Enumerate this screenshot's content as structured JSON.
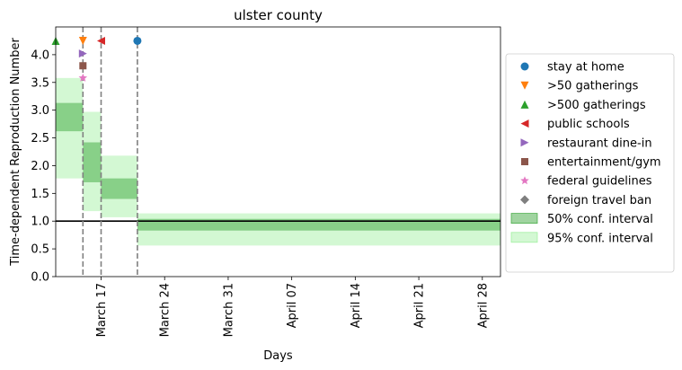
{
  "chart_data": {
    "type": "step-band",
    "title": "ulster county",
    "xlabel": "Days",
    "ylabel": "Time-dependent Reproduction Number",
    "x_unit": "date",
    "xlim": [
      "2020-03-12",
      "2020-04-30"
    ],
    "ylim": [
      0,
      4.5
    ],
    "yticks": [
      0.0,
      0.5,
      1.0,
      1.5,
      2.0,
      2.5,
      3.0,
      3.5,
      4.0
    ],
    "xticks": [
      {
        "date": "2020-03-17",
        "label": "March 17"
      },
      {
        "date": "2020-03-24",
        "label": "March 24"
      },
      {
        "date": "2020-03-31",
        "label": "March 31"
      },
      {
        "date": "2020-04-07",
        "label": "April 07"
      },
      {
        "date": "2020-04-14",
        "label": "April 14"
      },
      {
        "date": "2020-04-21",
        "label": "April 21"
      },
      {
        "date": "2020-04-28",
        "label": "April 28"
      }
    ],
    "reference_line": 1.0,
    "intervention_dates": [
      "2020-03-15",
      "2020-03-17",
      "2020-03-21"
    ],
    "segments": [
      {
        "start": "2020-03-12",
        "end": "2020-03-15",
        "ci50": [
          2.62,
          3.13
        ],
        "ci95": [
          1.77,
          3.58
        ]
      },
      {
        "start": "2020-03-15",
        "end": "2020-03-17",
        "ci50": [
          1.7,
          2.42
        ],
        "ci95": [
          1.18,
          2.97
        ]
      },
      {
        "start": "2020-03-17",
        "end": "2020-03-21",
        "ci50": [
          1.4,
          1.77
        ],
        "ci95": [
          1.07,
          2.18
        ]
      },
      {
        "start": "2020-03-21",
        "end": "2020-04-30",
        "ci50": [
          0.83,
          1.04
        ],
        "ci95": [
          0.56,
          1.14
        ]
      }
    ],
    "events": [
      {
        "name": "stay at home",
        "date": "2020-03-21",
        "y": 4.25,
        "color": "#1f77b4",
        "marker": "circle"
      },
      {
        "name": ">50 gatherings",
        "date": "2020-03-15",
        "y": 4.25,
        "color": "#ff7f0e",
        "marker": "triangle-down"
      },
      {
        "name": ">500 gatherings",
        "date": "2020-03-12",
        "y": 4.25,
        "color": "#2ca02c",
        "marker": "triangle-up"
      },
      {
        "name": "public schools",
        "date": "2020-03-17",
        "y": 4.25,
        "color": "#d62728",
        "marker": "triangle-left"
      },
      {
        "name": "restaurant dine-in",
        "date": "2020-03-15",
        "y": 4.02,
        "color": "#9467bd",
        "marker": "triangle-right"
      },
      {
        "name": "entertainment/gym",
        "date": "2020-03-15",
        "y": 3.8,
        "color": "#8c564b",
        "marker": "square"
      },
      {
        "name": "federal guidelines",
        "date": "2020-03-15",
        "y": 3.58,
        "color": "#e377c2",
        "marker": "star"
      },
      {
        "name": "foreign travel ban",
        "date": "",
        "y": null,
        "color": "#7f7f7f",
        "marker": "diamond"
      }
    ],
    "legend": {
      "placement": "right",
      "entries": [
        {
          "label": "stay at home",
          "kind": "marker",
          "marker": "circle",
          "color": "#1f77b4"
        },
        {
          "label": ">50 gatherings",
          "kind": "marker",
          "marker": "triangle-down",
          "color": "#ff7f0e"
        },
        {
          "label": ">500 gatherings",
          "kind": "marker",
          "marker": "triangle-up",
          "color": "#2ca02c"
        },
        {
          "label": "public schools",
          "kind": "marker",
          "marker": "triangle-left",
          "color": "#d62728"
        },
        {
          "label": "restaurant dine-in",
          "kind": "marker",
          "marker": "triangle-right",
          "color": "#9467bd"
        },
        {
          "label": "entertainment/gym",
          "kind": "marker",
          "marker": "square",
          "color": "#8c564b"
        },
        {
          "label": "federal guidelines",
          "kind": "marker",
          "marker": "star",
          "color": "#e377c2"
        },
        {
          "label": "foreign travel ban",
          "kind": "marker",
          "marker": "diamond",
          "color": "#7f7f7f"
        },
        {
          "label": "50% conf. interval",
          "kind": "patch",
          "color": "#2ca02c",
          "opacity": 0.45
        },
        {
          "label": "95% conf. interval",
          "kind": "patch",
          "color": "#90ee90",
          "opacity": 0.4
        }
      ]
    },
    "colors": {
      "ci50": "#2ca02c",
      "ci95": "#90ee90",
      "reference": "#000000",
      "intervention_line": "#808080"
    }
  }
}
